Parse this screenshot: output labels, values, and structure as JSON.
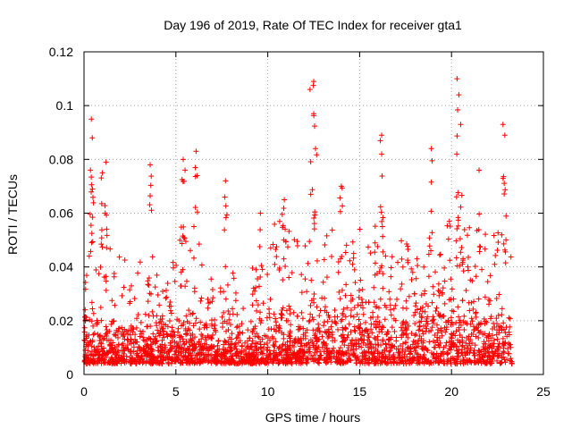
{
  "chart_data": {
    "type": "scatter",
    "title": "Day 196 of 2019, Rate Of TEC Index for receiver gta1",
    "xlabel": "GPS time / hours",
    "ylabel": "ROTI / TECUs",
    "xlim": [
      0,
      25
    ],
    "ylim": [
      0,
      0.12
    ],
    "x_ticks": [
      "0",
      "5",
      "10",
      "15",
      "20",
      "25"
    ],
    "y_ticks": [
      "0",
      "0.02",
      "0.04",
      "0.06",
      "0.08",
      "0.1",
      "0.12"
    ],
    "grid": true,
    "marker": "+",
    "marker_color": "#ff0000",
    "x_data_range": [
      0,
      23.3
    ],
    "series": [
      {
        "x": [
          0.0,
          0.5,
          1.0,
          1.5,
          2.0,
          2.5,
          3.0,
          3.5,
          4.0,
          4.5,
          5.0,
          5.5,
          6.0,
          6.5,
          7.0,
          7.5,
          8.0,
          8.5,
          9.0,
          9.5,
          10.0,
          10.5,
          11.0,
          11.5,
          12.0,
          12.5,
          13.0,
          13.5,
          14.0,
          14.5,
          15.0,
          15.5,
          16.0,
          16.5,
          17.0,
          17.5,
          18.0,
          18.5,
          19.0,
          19.5,
          20.0,
          20.5,
          21.0,
          21.5,
          22.0,
          22.5,
          23.0
        ],
        "y_typical": [
          0.012,
          0.014,
          0.013,
          0.012,
          0.012,
          0.012,
          0.012,
          0.012,
          0.012,
          0.012,
          0.013,
          0.014,
          0.013,
          0.012,
          0.012,
          0.012,
          0.012,
          0.011,
          0.011,
          0.011,
          0.012,
          0.014,
          0.015,
          0.014,
          0.014,
          0.014,
          0.014,
          0.016,
          0.017,
          0.018,
          0.018,
          0.018,
          0.018,
          0.017,
          0.017,
          0.017,
          0.017,
          0.017,
          0.017,
          0.017,
          0.018,
          0.018,
          0.017,
          0.017,
          0.016,
          0.016,
          0.015
        ],
        "y_upper": [
          0.03,
          0.06,
          0.06,
          0.045,
          0.045,
          0.045,
          0.045,
          0.045,
          0.045,
          0.04,
          0.05,
          0.06,
          0.055,
          0.045,
          0.04,
          0.04,
          0.045,
          0.04,
          0.04,
          0.04,
          0.045,
          0.06,
          0.065,
          0.05,
          0.05,
          0.055,
          0.05,
          0.055,
          0.06,
          0.05,
          0.055,
          0.05,
          0.06,
          0.05,
          0.05,
          0.05,
          0.055,
          0.05,
          0.055,
          0.055,
          0.06,
          0.06,
          0.055,
          0.055,
          0.055,
          0.055,
          0.05
        ]
      }
    ],
    "peaks": [
      {
        "x": 0.4,
        "y": 0.095
      },
      {
        "x": 0.45,
        "y": 0.088
      },
      {
        "x": 0.35,
        "y": 0.076
      },
      {
        "x": 1.2,
        "y": 0.079
      },
      {
        "x": 1.0,
        "y": 0.075
      },
      {
        "x": 3.6,
        "y": 0.078
      },
      {
        "x": 5.4,
        "y": 0.08
      },
      {
        "x": 6.1,
        "y": 0.083
      },
      {
        "x": 5.5,
        "y": 0.076
      },
      {
        "x": 7.7,
        "y": 0.072
      },
      {
        "x": 9.6,
        "y": 0.06
      },
      {
        "x": 10.9,
        "y": 0.065
      },
      {
        "x": 12.3,
        "y": 0.106
      },
      {
        "x": 12.5,
        "y": 0.109
      },
      {
        "x": 12.5,
        "y": 0.097
      },
      {
        "x": 12.6,
        "y": 0.084
      },
      {
        "x": 14.0,
        "y": 0.07
      },
      {
        "x": 16.2,
        "y": 0.089
      },
      {
        "x": 16.2,
        "y": 0.082
      },
      {
        "x": 18.9,
        "y": 0.084
      },
      {
        "x": 20.3,
        "y": 0.11
      },
      {
        "x": 20.4,
        "y": 0.104
      },
      {
        "x": 20.5,
        "y": 0.093
      },
      {
        "x": 21.5,
        "y": 0.076
      },
      {
        "x": 22.8,
        "y": 0.093
      },
      {
        "x": 22.9,
        "y": 0.089
      }
    ]
  }
}
